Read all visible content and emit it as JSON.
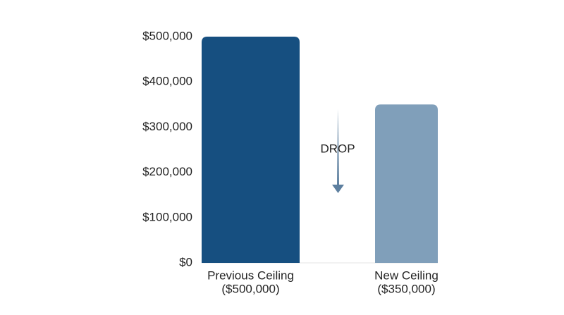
{
  "chart_data": {
    "type": "bar",
    "categories": [
      [
        "Previous Ceiling",
        "($500,000)"
      ],
      [
        "New Ceiling",
        "($350,000)"
      ]
    ],
    "values": [
      500000,
      350000
    ],
    "colors": [
      "#164f80",
      "#809fba"
    ],
    "ylim": [
      0,
      500000
    ],
    "yticks": [
      {
        "value": 0,
        "label": "$0"
      },
      {
        "value": 100000,
        "label": "$100,000"
      },
      {
        "value": 200000,
        "label": "$200,000"
      },
      {
        "value": 300000,
        "label": "$300,000"
      },
      {
        "value": 400000,
        "label": "$400,000"
      },
      {
        "value": 500000,
        "label": "$500,000"
      }
    ],
    "grid": false,
    "annotation": "DROP"
  }
}
